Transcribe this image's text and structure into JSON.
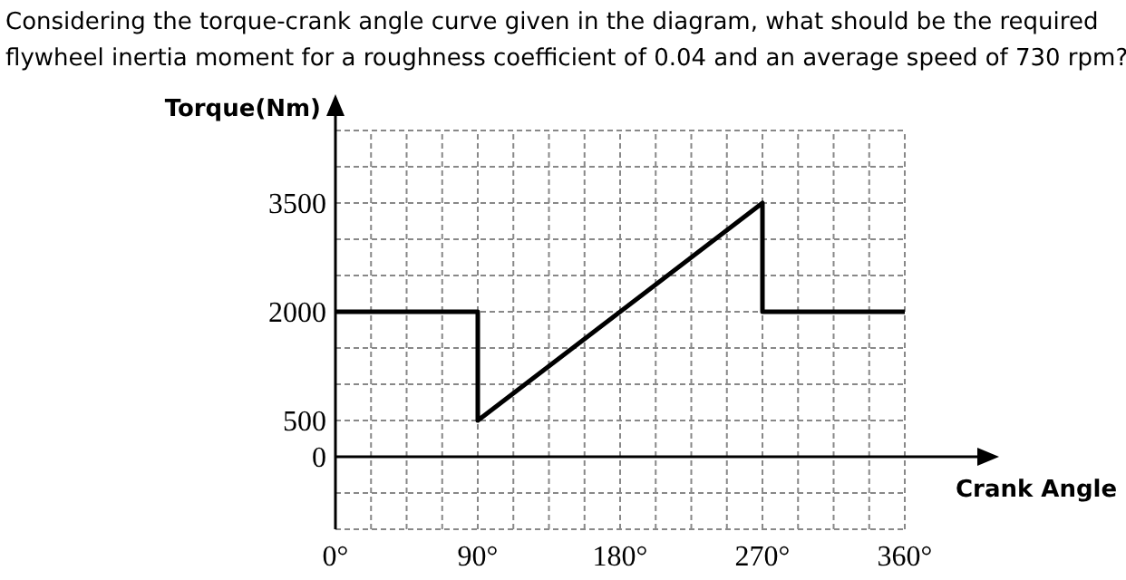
{
  "chart_data": {
    "type": "line",
    "title": "Considering the torque-crank angle curve given in the diagram, what should be the required flywheel inertia moment for a roughness coefficient of 0.04 and an average speed of 730 rpm?",
    "xlabel": "Crank Angle",
    "ylabel": "Torque(Nm)",
    "series": [
      {
        "color": "#000000",
        "x": [
          0,
          90,
          90,
          270,
          270,
          360
        ],
        "values": [
          2000,
          2000,
          500,
          3500,
          2000,
          2000
        ]
      }
    ],
    "xlim": [
      0,
      360
    ],
    "xticks": [
      {
        "value": 0,
        "label": "0°"
      },
      {
        "value": 22.5,
        "label": null
      },
      {
        "value": 45,
        "label": null
      },
      {
        "value": 67.5,
        "label": null
      },
      {
        "value": 90,
        "label": "90°"
      },
      {
        "value": 112.5,
        "label": null
      },
      {
        "value": 135,
        "label": null
      },
      {
        "value": 157.5,
        "label": null
      },
      {
        "value": 180,
        "label": "180°"
      },
      {
        "value": 202.5,
        "label": null
      },
      {
        "value": 225,
        "label": null
      },
      {
        "value": 247.5,
        "label": null
      },
      {
        "value": 270,
        "label": "270°"
      },
      {
        "value": 292.5,
        "label": null
      },
      {
        "value": 315,
        "label": null
      },
      {
        "value": 337.5,
        "label": null
      },
      {
        "value": 360,
        "label": "360°"
      }
    ],
    "ylim": [
      -1000,
      4500
    ],
    "yticks": [
      {
        "value": -1000,
        "label": null
      },
      {
        "value": -500,
        "label": null
      },
      0,
      500,
      {
        "value": 1000,
        "label": null
      },
      {
        "value": 1500,
        "label": null
      },
      2000,
      {
        "value": 2500,
        "label": null
      },
      {
        "value": 3000,
        "label": null
      },
      3500,
      {
        "value": 4000,
        "label": null
      },
      {
        "value": 4500,
        "label": null
      }
    ],
    "grid": true,
    "marker": "none",
    "line_style": "solid"
  }
}
